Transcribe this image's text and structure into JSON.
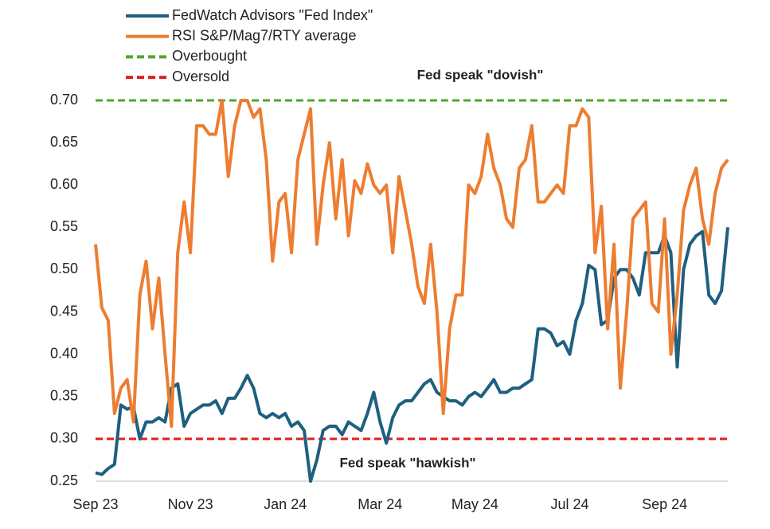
{
  "chart_data": {
    "type": "line",
    "categories": [
      "Sep 23",
      null,
      null,
      null,
      null,
      null,
      null,
      null,
      null,
      null,
      null,
      null,
      null,
      null,
      null,
      "Nov 23",
      null,
      null,
      null,
      null,
      null,
      null,
      null,
      null,
      null,
      null,
      null,
      null,
      null,
      null,
      "Jan 24",
      null,
      null,
      null,
      null,
      null,
      null,
      null,
      null,
      null,
      null,
      null,
      null,
      null,
      null,
      "Mar 24",
      null,
      null,
      null,
      null,
      null,
      null,
      null,
      null,
      null,
      null,
      null,
      null,
      null,
      null,
      "May 24",
      null,
      null,
      null,
      null,
      null,
      null,
      null,
      null,
      null,
      null,
      null,
      null,
      null,
      null,
      "Jul 24",
      null,
      null,
      null,
      null,
      null,
      null,
      null,
      null,
      null,
      null,
      null,
      null,
      null,
      null,
      "Sep 24",
      null,
      null,
      null,
      null,
      null,
      null,
      null,
      null,
      null,
      null
    ],
    "series": [
      {
        "name": "FedWatch Advisors \"Fed Index\"",
        "color": "#1f5f7f",
        "values": [
          0.26,
          0.258,
          0.265,
          0.27,
          0.34,
          0.335,
          0.338,
          0.3,
          0.32,
          0.32,
          0.325,
          0.32,
          0.36,
          0.365,
          0.315,
          0.33,
          0.335,
          0.34,
          0.34,
          0.345,
          0.33,
          0.348,
          0.348,
          0.36,
          0.375,
          0.36,
          0.33,
          0.325,
          0.33,
          0.325,
          0.33,
          0.315,
          0.32,
          0.31,
          0.25,
          0.275,
          0.31,
          0.315,
          0.315,
          0.305,
          0.32,
          0.315,
          0.31,
          0.33,
          0.355,
          0.32,
          0.295,
          0.325,
          0.34,
          0.345,
          0.345,
          0.355,
          0.365,
          0.37,
          0.355,
          0.35,
          0.345,
          0.345,
          0.34,
          0.35,
          0.355,
          0.35,
          0.36,
          0.37,
          0.355,
          0.355,
          0.36,
          0.36,
          0.365,
          0.37,
          0.43,
          0.43,
          0.425,
          0.41,
          0.415,
          0.4,
          0.44,
          0.46,
          0.505,
          0.5,
          0.435,
          0.44,
          0.49,
          0.5,
          0.5,
          0.49,
          0.47,
          0.52,
          0.52,
          0.52,
          0.54,
          0.52,
          0.385,
          0.5,
          0.53,
          0.54,
          0.545,
          0.47,
          0.46,
          0.475,
          0.55
        ]
      },
      {
        "name": "RSI S&P/Mag7/RTY average",
        "color": "#ed7d31",
        "values": [
          0.53,
          0.455,
          0.44,
          0.33,
          0.36,
          0.37,
          0.32,
          0.47,
          0.51,
          0.43,
          0.49,
          0.4,
          0.315,
          0.52,
          0.58,
          0.52,
          0.67,
          0.67,
          0.66,
          0.66,
          0.7,
          0.61,
          0.67,
          0.7,
          0.7,
          0.68,
          0.69,
          0.63,
          0.51,
          0.58,
          0.59,
          0.52,
          0.63,
          0.66,
          0.69,
          0.53,
          0.6,
          0.65,
          0.56,
          0.63,
          0.54,
          0.605,
          0.59,
          0.625,
          0.6,
          0.59,
          0.6,
          0.52,
          0.61,
          0.57,
          0.53,
          0.48,
          0.46,
          0.53,
          0.45,
          0.33,
          0.43,
          0.47,
          0.47,
          0.6,
          0.59,
          0.61,
          0.66,
          0.62,
          0.6,
          0.56,
          0.55,
          0.62,
          0.63,
          0.67,
          0.58,
          0.58,
          0.59,
          0.6,
          0.59,
          0.67,
          0.67,
          0.69,
          0.68,
          0.52,
          0.575,
          0.43,
          0.53,
          0.36,
          0.45,
          0.56,
          0.57,
          0.58,
          0.46,
          0.45,
          0.56,
          0.4,
          0.47,
          0.57,
          0.6,
          0.62,
          0.56,
          0.53,
          0.59,
          0.62,
          0.63
        ]
      }
    ],
    "reference_lines": [
      {
        "name": "Overbought",
        "color": "#4ea72e",
        "value": 0.7,
        "dashed": true
      },
      {
        "name": "Oversold",
        "color": "#e02020",
        "value": 0.3,
        "dashed": true
      }
    ],
    "annotations": [
      {
        "text": "Fed speak \"dovish\"",
        "at": 0.7
      },
      {
        "text": "Fed speak \"hawkish\"",
        "at": 0.3
      }
    ],
    "ylim": [
      0.25,
      0.7
    ],
    "yticks": [
      {
        "value": 0.25,
        "label": "0.25"
      },
      {
        "value": 0.3,
        "label": "0.30"
      },
      {
        "value": 0.35,
        "label": "0.35"
      },
      {
        "value": 0.4,
        "label": "0.40"
      },
      {
        "value": 0.45,
        "label": "0.45"
      },
      {
        "value": 0.5,
        "label": "0.50"
      },
      {
        "value": 0.55,
        "label": "0.55"
      },
      {
        "value": 0.6,
        "label": "0.60"
      },
      {
        "value": 0.65,
        "label": "0.65"
      },
      {
        "value": 0.7,
        "label": "0.70"
      }
    ],
    "grid": false,
    "legend": "top-left"
  }
}
